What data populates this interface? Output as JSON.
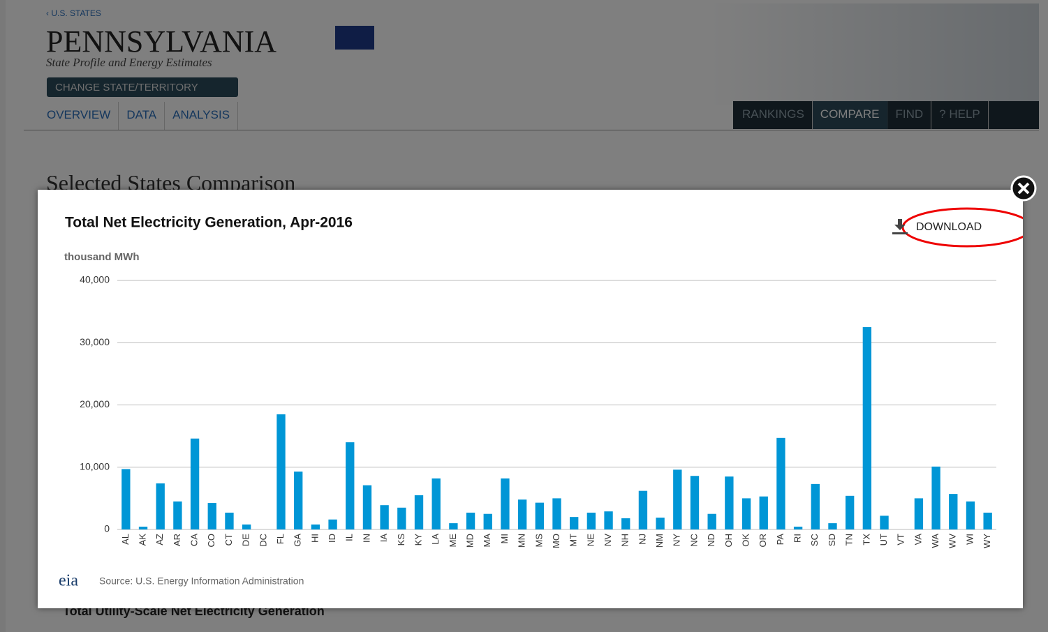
{
  "header": {
    "breadcrumb": "‹ U.S. STATES",
    "state": "PENNSYLVANIA",
    "subtitle": "State Profile and Energy Estimates",
    "change_button": "CHANGE STATE/TERRITORY"
  },
  "nav_left": [
    "OVERVIEW",
    "DATA",
    "ANALYSIS"
  ],
  "nav_right": [
    "RANKINGS",
    "COMPARE",
    "FIND",
    "? HELP"
  ],
  "page_heading": "Selected States Comparison",
  "table_heading": "Total Utility-Scale Net Electricity Generation",
  "modal": {
    "download": "DOWNLOAD",
    "source": "Source: U.S. Energy Information Administration",
    "logo": "eia"
  },
  "chart_data": {
    "type": "bar",
    "title": "Total Net Electricity Generation, Apr-2016",
    "y_label": "thousand MWh",
    "color": "#0096d6",
    "grid": true,
    "categories": [
      "AL",
      "AK",
      "AZ",
      "AR",
      "CA",
      "CO",
      "CT",
      "DE",
      "DC",
      "FL",
      "GA",
      "HI",
      "ID",
      "IL",
      "IN",
      "IA",
      "KS",
      "KY",
      "LA",
      "ME",
      "MD",
      "MA",
      "MI",
      "MN",
      "MS",
      "MO",
      "MT",
      "NE",
      "NV",
      "NH",
      "NJ",
      "NM",
      "NY",
      "NC",
      "ND",
      "OH",
      "OK",
      "OR",
      "PA",
      "RI",
      "SC",
      "SD",
      "TN",
      "TX",
      "UT",
      "VT",
      "VA",
      "WA",
      "WV",
      "WI",
      "WY"
    ],
    "values": [
      9700,
      450,
      7400,
      4500,
      14600,
      4250,
      2700,
      800,
      0,
      18500,
      9300,
      800,
      1600,
      14000,
      7100,
      3900,
      3500,
      5500,
      8200,
      1000,
      2700,
      2500,
      8200,
      4800,
      4300,
      5000,
      2000,
      2700,
      2900,
      1800,
      6200,
      1900,
      9600,
      8600,
      2500,
      8500,
      5000,
      5300,
      14700,
      450,
      7300,
      1000,
      5400,
      32500,
      2200,
      0,
      5000,
      10100,
      5700,
      4500,
      2700
    ],
    "ylim": [
      0,
      40000
    ],
    "yticks": [
      0,
      {
        "value": 10000,
        "label": "10,000"
      },
      {
        "value": 20000,
        "label": "20,000"
      },
      {
        "value": 30000,
        "label": "30,000"
      },
      {
        "value": 40000,
        "label": "40,000"
      }
    ]
  }
}
